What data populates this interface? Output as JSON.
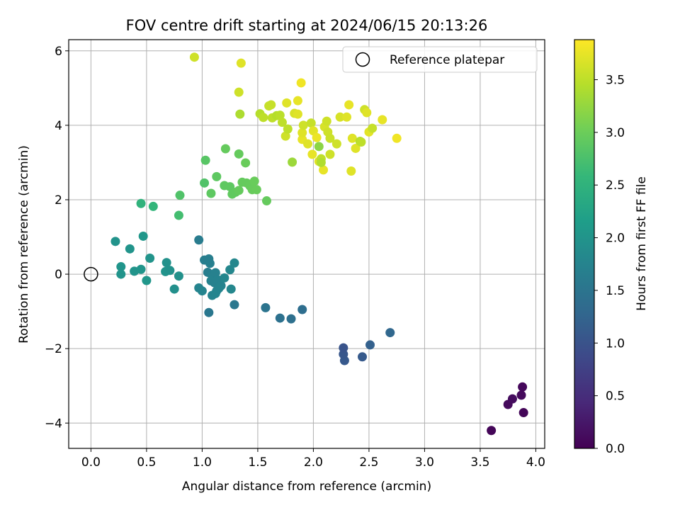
{
  "chart_data": {
    "type": "scatter",
    "title": "FOV centre drift starting at 2024/06/15 20:13:26",
    "xlabel": "Angular distance from reference (arcmin)",
    "ylabel": "Rotation from reference (arcmin)",
    "xlim": [
      -0.2,
      4.08
    ],
    "ylim": [
      -4.68,
      6.3
    ],
    "xticks": [
      "0.0",
      "0.5",
      "1.0",
      "1.5",
      "2.0",
      "2.5",
      "3.0",
      "3.5",
      "4.0"
    ],
    "yticks": [
      "−4",
      "−2",
      "0",
      "2",
      "4",
      "6"
    ],
    "grid": true,
    "legend": {
      "placement": "top-right",
      "label": "Reference platepar"
    },
    "reference": {
      "x": 0.0,
      "y": 0.0
    },
    "colorbar": {
      "label": "Hours from first FF file",
      "min": 0.0,
      "max": 3.88,
      "ticks": [
        "0.0",
        "0.5",
        "1.0",
        "1.5",
        "2.0",
        "2.5",
        "3.0",
        "3.5"
      ],
      "colormap": [
        "#440154",
        "#482878",
        "#3e4989",
        "#31688e",
        "#26828e",
        "#1f9e89",
        "#35b779",
        "#6ece58",
        "#b5de2b",
        "#fde725"
      ]
    },
    "points": [
      {
        "x": 3.6,
        "y": -4.2,
        "t": 0.05
      },
      {
        "x": 3.75,
        "y": -3.5,
        "t": 0.1
      },
      {
        "x": 3.79,
        "y": -3.35,
        "t": 0.12
      },
      {
        "x": 3.87,
        "y": -3.25,
        "t": 0.1
      },
      {
        "x": 3.88,
        "y": -3.03,
        "t": 0.08
      },
      {
        "x": 3.89,
        "y": -3.72,
        "t": 0.05
      },
      {
        "x": 2.69,
        "y": -1.57,
        "t": 1.3
      },
      {
        "x": 2.51,
        "y": -1.9,
        "t": 1.2
      },
      {
        "x": 2.44,
        "y": -2.22,
        "t": 1.1
      },
      {
        "x": 2.28,
        "y": -2.32,
        "t": 1.08
      },
      {
        "x": 2.27,
        "y": -2.15,
        "t": 1.05
      },
      {
        "x": 2.27,
        "y": -1.98,
        "t": 1.02
      },
      {
        "x": 1.9,
        "y": -0.95,
        "t": 1.4
      },
      {
        "x": 1.8,
        "y": -1.2,
        "t": 1.42
      },
      {
        "x": 1.7,
        "y": -1.18,
        "t": 1.45
      },
      {
        "x": 1.57,
        "y": -0.9,
        "t": 1.5
      },
      {
        "x": 1.29,
        "y": -0.82,
        "t": 1.55
      },
      {
        "x": 1.06,
        "y": -1.03,
        "t": 1.55
      },
      {
        "x": 0.97,
        "y": 0.92,
        "t": 1.62
      },
      {
        "x": 1.02,
        "y": 0.38,
        "t": 1.65
      },
      {
        "x": 1.06,
        "y": 0.41,
        "t": 1.66
      },
      {
        "x": 1.07,
        "y": 0.29,
        "t": 1.68
      },
      {
        "x": 1.05,
        "y": 0.05,
        "t": 1.66
      },
      {
        "x": 1.09,
        "y": -0.03,
        "t": 1.7
      },
      {
        "x": 1.12,
        "y": 0.04,
        "t": 1.7
      },
      {
        "x": 1.08,
        "y": -0.18,
        "t": 1.72
      },
      {
        "x": 1.11,
        "y": -0.23,
        "t": 1.7
      },
      {
        "x": 1.14,
        "y": -0.15,
        "t": 1.72
      },
      {
        "x": 1.17,
        "y": -0.31,
        "t": 1.74
      },
      {
        "x": 1.13,
        "y": -0.45,
        "t": 1.72
      },
      {
        "x": 1.09,
        "y": -0.57,
        "t": 1.74
      },
      {
        "x": 1.12,
        "y": -0.52,
        "t": 1.76
      },
      {
        "x": 1.15,
        "y": -0.38,
        "t": 1.76
      },
      {
        "x": 1.2,
        "y": -0.1,
        "t": 1.78
      },
      {
        "x": 1.25,
        "y": 0.12,
        "t": 1.8
      },
      {
        "x": 1.29,
        "y": 0.3,
        "t": 1.8
      },
      {
        "x": 1.26,
        "y": -0.4,
        "t": 1.8
      },
      {
        "x": 0.97,
        "y": -0.37,
        "t": 1.76
      },
      {
        "x": 1.0,
        "y": -0.45,
        "t": 1.76
      },
      {
        "x": 0.22,
        "y": 0.88,
        "t": 1.98
      },
      {
        "x": 0.35,
        "y": 0.68,
        "t": 2.0
      },
      {
        "x": 0.47,
        "y": 1.02,
        "t": 2.05
      },
      {
        "x": 0.27,
        "y": 0.2,
        "t": 2.02
      },
      {
        "x": 0.27,
        "y": 0.0,
        "t": 2.0
      },
      {
        "x": 0.39,
        "y": 0.08,
        "t": 2.0
      },
      {
        "x": 0.45,
        "y": 0.13,
        "t": 2.02
      },
      {
        "x": 0.5,
        "y": -0.17,
        "t": 2.04
      },
      {
        "x": 0.53,
        "y": 0.43,
        "t": 2.0
      },
      {
        "x": 0.68,
        "y": 0.31,
        "t": 1.96
      },
      {
        "x": 0.67,
        "y": 0.07,
        "t": 1.98
      },
      {
        "x": 0.71,
        "y": 0.1,
        "t": 1.96
      },
      {
        "x": 0.79,
        "y": -0.05,
        "t": 1.96
      },
      {
        "x": 0.75,
        "y": -0.4,
        "t": 1.94
      },
      {
        "x": 0.45,
        "y": 1.9,
        "t": 2.5
      },
      {
        "x": 0.56,
        "y": 1.82,
        "t": 2.55
      },
      {
        "x": 0.79,
        "y": 1.58,
        "t": 2.7
      },
      {
        "x": 0.8,
        "y": 2.12,
        "t": 2.8
      },
      {
        "x": 1.02,
        "y": 2.45,
        "t": 2.8
      },
      {
        "x": 1.03,
        "y": 3.06,
        "t": 2.85
      },
      {
        "x": 1.08,
        "y": 2.17,
        "t": 2.9
      },
      {
        "x": 1.13,
        "y": 2.62,
        "t": 2.9
      },
      {
        "x": 1.21,
        "y": 3.37,
        "t": 2.95
      },
      {
        "x": 1.2,
        "y": 2.38,
        "t": 2.9
      },
      {
        "x": 1.25,
        "y": 2.35,
        "t": 2.9
      },
      {
        "x": 1.27,
        "y": 2.15,
        "t": 2.92
      },
      {
        "x": 1.3,
        "y": 2.2,
        "t": 2.92
      },
      {
        "x": 1.33,
        "y": 2.25,
        "t": 2.95
      },
      {
        "x": 1.33,
        "y": 3.23,
        "t": 2.95
      },
      {
        "x": 1.36,
        "y": 2.47,
        "t": 2.95
      },
      {
        "x": 1.4,
        "y": 2.45,
        "t": 2.95
      },
      {
        "x": 1.43,
        "y": 2.37,
        "t": 2.96
      },
      {
        "x": 1.45,
        "y": 2.27,
        "t": 2.97
      },
      {
        "x": 1.47,
        "y": 2.5,
        "t": 2.98
      },
      {
        "x": 1.49,
        "y": 2.27,
        "t": 2.98
      },
      {
        "x": 1.39,
        "y": 2.99,
        "t": 2.98
      },
      {
        "x": 1.58,
        "y": 1.97,
        "t": 2.95
      },
      {
        "x": 0.93,
        "y": 5.83,
        "t": 3.6
      },
      {
        "x": 1.35,
        "y": 5.67,
        "t": 3.7
      },
      {
        "x": 1.33,
        "y": 4.89,
        "t": 3.6
      },
      {
        "x": 1.34,
        "y": 4.3,
        "t": 3.4
      },
      {
        "x": 1.52,
        "y": 4.31,
        "t": 3.45
      },
      {
        "x": 1.55,
        "y": 4.21,
        "t": 3.5
      },
      {
        "x": 1.6,
        "y": 4.52,
        "t": 3.55
      },
      {
        "x": 1.62,
        "y": 4.55,
        "t": 3.55
      },
      {
        "x": 1.63,
        "y": 4.2,
        "t": 3.5
      },
      {
        "x": 1.67,
        "y": 4.26,
        "t": 3.45
      },
      {
        "x": 1.7,
        "y": 4.27,
        "t": 3.48
      },
      {
        "x": 1.72,
        "y": 4.08,
        "t": 3.5
      },
      {
        "x": 1.75,
        "y": 3.71,
        "t": 3.6
      },
      {
        "x": 1.76,
        "y": 4.6,
        "t": 3.7
      },
      {
        "x": 1.77,
        "y": 3.9,
        "t": 3.5
      },
      {
        "x": 1.83,
        "y": 4.32,
        "t": 3.65
      },
      {
        "x": 1.86,
        "y": 4.3,
        "t": 3.7
      },
      {
        "x": 1.86,
        "y": 4.66,
        "t": 3.75
      },
      {
        "x": 1.89,
        "y": 5.14,
        "t": 3.8
      },
      {
        "x": 1.9,
        "y": 3.62,
        "t": 3.75
      },
      {
        "x": 1.9,
        "y": 3.8,
        "t": 3.7
      },
      {
        "x": 1.91,
        "y": 4.0,
        "t": 3.6
      },
      {
        "x": 1.95,
        "y": 3.5,
        "t": 3.7
      },
      {
        "x": 1.98,
        "y": 4.06,
        "t": 3.55
      },
      {
        "x": 1.99,
        "y": 3.22,
        "t": 3.75
      },
      {
        "x": 2.0,
        "y": 3.85,
        "t": 3.72
      },
      {
        "x": 2.03,
        "y": 3.67,
        "t": 3.78
      },
      {
        "x": 2.05,
        "y": 3.43,
        "t": 3.2
      },
      {
        "x": 2.05,
        "y": 3.03,
        "t": 3.7
      },
      {
        "x": 2.07,
        "y": 3.1,
        "t": 3.5
      },
      {
        "x": 2.09,
        "y": 2.8,
        "t": 3.75
      },
      {
        "x": 2.1,
        "y": 3.96,
        "t": 3.65
      },
      {
        "x": 2.12,
        "y": 4.11,
        "t": 3.6
      },
      {
        "x": 2.13,
        "y": 3.82,
        "t": 3.6
      },
      {
        "x": 2.15,
        "y": 3.22,
        "t": 3.6
      },
      {
        "x": 2.15,
        "y": 3.65,
        "t": 3.58
      },
      {
        "x": 2.21,
        "y": 3.5,
        "t": 3.6
      },
      {
        "x": 2.24,
        "y": 4.22,
        "t": 3.65
      },
      {
        "x": 2.3,
        "y": 4.22,
        "t": 3.7
      },
      {
        "x": 2.32,
        "y": 4.55,
        "t": 3.75
      },
      {
        "x": 2.34,
        "y": 2.77,
        "t": 3.7
      },
      {
        "x": 2.35,
        "y": 3.65,
        "t": 3.7
      },
      {
        "x": 2.38,
        "y": 3.38,
        "t": 3.7
      },
      {
        "x": 2.42,
        "y": 3.57,
        "t": 3.45
      },
      {
        "x": 2.43,
        "y": 3.55,
        "t": 3.5
      },
      {
        "x": 2.46,
        "y": 4.42,
        "t": 3.6
      },
      {
        "x": 2.48,
        "y": 4.34,
        "t": 3.7
      },
      {
        "x": 2.5,
        "y": 3.82,
        "t": 3.72
      },
      {
        "x": 2.53,
        "y": 3.92,
        "t": 3.55
      },
      {
        "x": 2.62,
        "y": 4.15,
        "t": 3.75
      },
      {
        "x": 2.75,
        "y": 3.65,
        "t": 3.8
      },
      {
        "x": 1.81,
        "y": 3.01,
        "t": 3.3
      },
      {
        "x": 2.07,
        "y": 3.0,
        "t": 3.42
      }
    ]
  }
}
